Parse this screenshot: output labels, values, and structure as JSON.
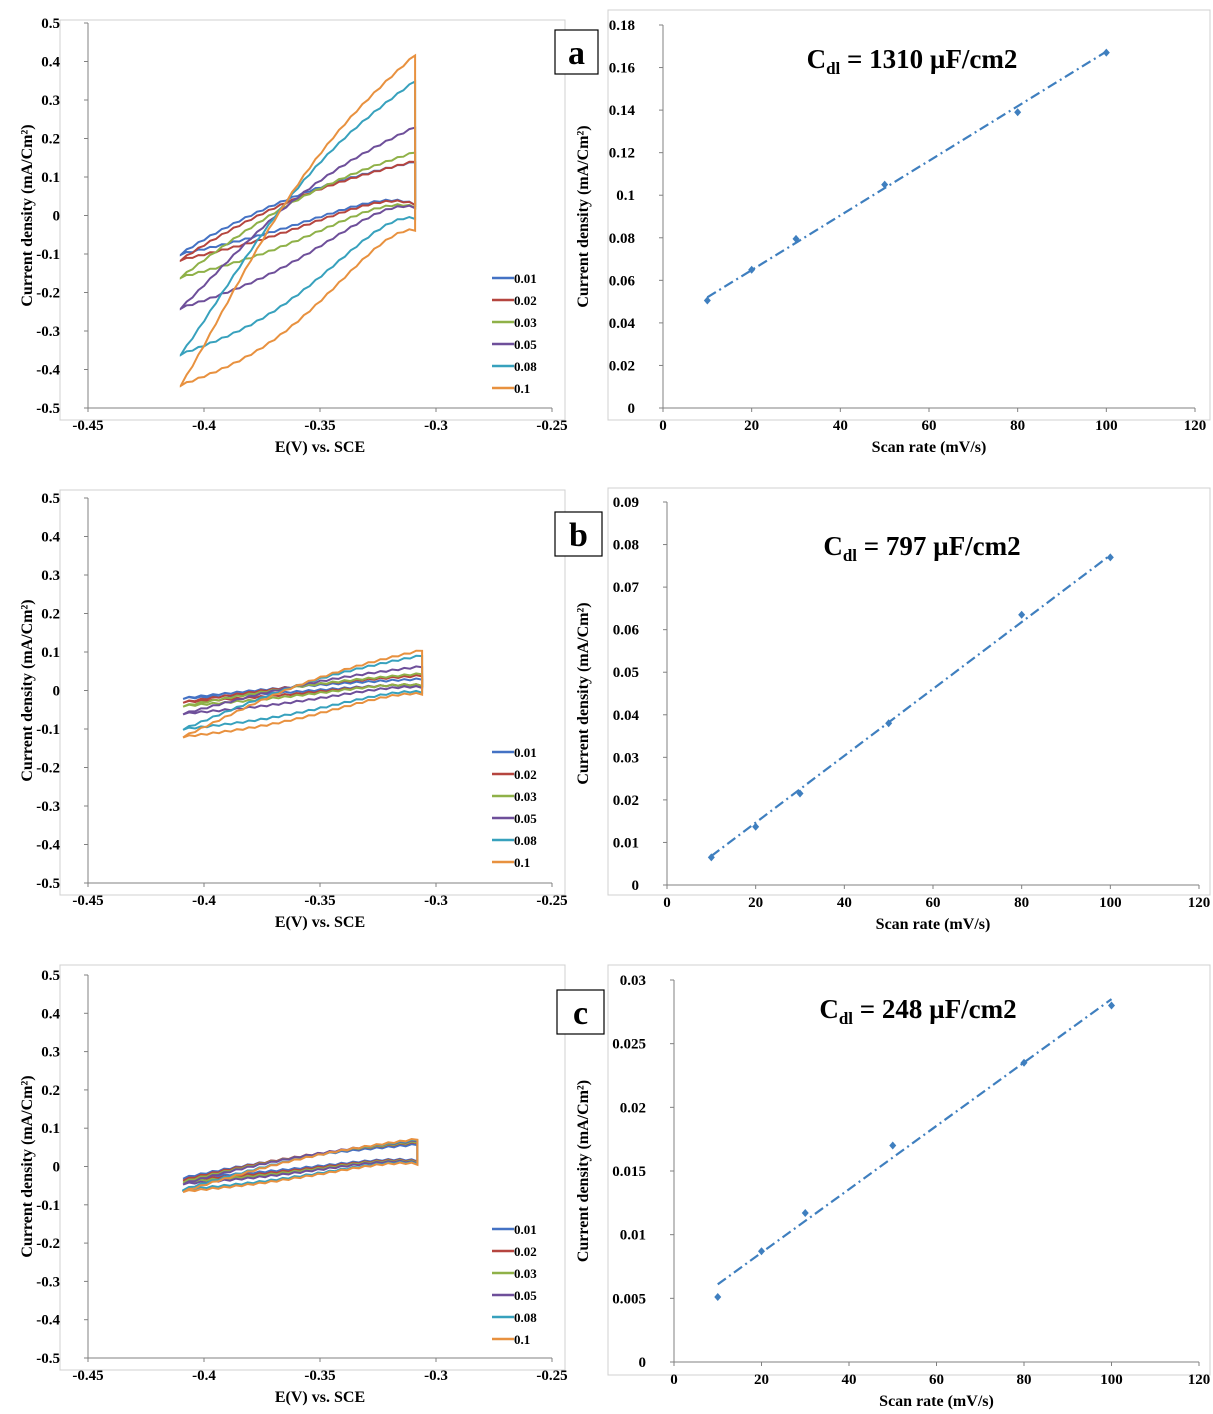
{
  "colors": {
    "0.01": "#4472c4",
    "0.02": "#b5453f",
    "0.03": "#8fb148",
    "0.05": "#6e4f9a",
    "0.08": "#37a1bd",
    "0.1": "#e8913f",
    "fit": "#3f7fbf",
    "axis": "#808080"
  },
  "chart_data": [
    {
      "panel": "a",
      "type": "line",
      "subtype": "cyclic-voltammogram",
      "title": "",
      "xlabel": "E(V)  vs. SCE",
      "ylabel": "Current density (mA/Cm²)",
      "xlim": [
        -0.45,
        -0.25
      ],
      "ylim": [
        -0.5,
        0.5
      ],
      "xticks": [
        "-0.45",
        "-0.4",
        "-0.35",
        "-0.3",
        "-0.25"
      ],
      "yticks": [
        "-0.5",
        "-0.4",
        "-0.3",
        "-0.2",
        "-0.1",
        "0",
        "0.1",
        "0.2",
        "0.3",
        "0.4",
        "0.5"
      ],
      "legend": "right",
      "series": [
        {
          "name": "0.01",
          "e_min": -0.41,
          "e_max": -0.309,
          "i_at_min": -0.1,
          "i_at_max": 0.12,
          "upper_end": 0.13,
          "lower_start": -0.14
        },
        {
          "name": "0.02",
          "e_min": -0.41,
          "e_max": -0.309,
          "i_at_min": -0.115,
          "i_at_max": 0.12,
          "upper_end": 0.135,
          "lower_start": -0.14
        },
        {
          "name": "0.03",
          "e_min": -0.41,
          "e_max": -0.309,
          "i_at_min": -0.16,
          "i_at_max": 0.12,
          "upper_end": 0.165,
          "lower_start": -0.16
        },
        {
          "name": "0.05",
          "e_min": -0.41,
          "e_max": -0.309,
          "i_at_min": -0.24,
          "i_at_max": 0.14,
          "upper_end": 0.24,
          "lower_start": -0.2
        },
        {
          "name": "0.08",
          "e_min": -0.41,
          "e_max": -0.309,
          "i_at_min": -0.36,
          "i_at_max": 0.14,
          "upper_end": 0.37,
          "lower_start": -0.28
        },
        {
          "name": "0.1",
          "e_min": -0.41,
          "e_max": -0.309,
          "i_at_min": -0.44,
          "i_at_max": 0.12,
          "upper_end": 0.445,
          "lower_start": -0.33
        }
      ]
    },
    {
      "panel": "a",
      "type": "scatter",
      "title": "",
      "annotation": {
        "main": "C",
        "sub": "dl",
        "rest": " = 1310 µF/cm2"
      },
      "xlabel": "Scan rate (mV/s)",
      "ylabel": "Current density (mA/Cm²)",
      "xlim": [
        0,
        120
      ],
      "ylim": [
        0,
        0.18
      ],
      "xticks": [
        "0",
        "20",
        "40",
        "60",
        "80",
        "100",
        "120"
      ],
      "yticks": [
        "0",
        "0.02",
        "0.04",
        "0.06",
        "0.08",
        "0.1",
        "0.12",
        "0.14",
        "0.16",
        "0.18"
      ],
      "x": [
        10,
        20,
        30,
        50,
        80,
        100
      ],
      "y": [
        0.0505,
        0.065,
        0.0795,
        0.105,
        0.139,
        0.167
      ],
      "fit": [
        [
          10,
          0.052
        ],
        [
          100,
          0.1675
        ]
      ]
    },
    {
      "panel": "b",
      "type": "line",
      "subtype": "cyclic-voltammogram",
      "title": "",
      "xlabel": "E(V)  vs. SCE",
      "ylabel": "Current density (mA/Cm²)",
      "xlim": [
        -0.45,
        -0.25
      ],
      "ylim": [
        -0.5,
        0.5
      ],
      "xticks": [
        "-0.45",
        "-0.4",
        "-0.35",
        "-0.3",
        "-0.25"
      ],
      "yticks": [
        "-0.5",
        "-0.4",
        "-0.3",
        "-0.2",
        "-0.1",
        "0",
        "0.1",
        "0.2",
        "0.3",
        "0.4",
        "0.5"
      ],
      "legend": "right",
      "series": [
        {
          "name": "0.01",
          "e_min": -0.409,
          "e_max": -0.306,
          "i_at_min": -0.02,
          "i_at_max": 0.03,
          "upper_end": 0.03,
          "lower_start": -0.02
        },
        {
          "name": "0.02",
          "e_min": -0.409,
          "e_max": -0.306,
          "i_at_min": -0.03,
          "i_at_max": 0.035,
          "upper_end": 0.04,
          "lower_start": -0.025
        },
        {
          "name": "0.03",
          "e_min": -0.409,
          "e_max": -0.306,
          "i_at_min": -0.04,
          "i_at_max": 0.04,
          "upper_end": 0.045,
          "lower_start": -0.035
        },
        {
          "name": "0.05",
          "e_min": -0.409,
          "e_max": -0.306,
          "i_at_min": -0.06,
          "i_at_max": 0.04,
          "upper_end": 0.065,
          "lower_start": -0.05
        },
        {
          "name": "0.08",
          "e_min": -0.409,
          "e_max": -0.306,
          "i_at_min": -0.1,
          "i_at_max": 0.04,
          "upper_end": 0.095,
          "lower_start": -0.085
        },
        {
          "name": "0.1",
          "e_min": -0.409,
          "e_max": -0.306,
          "i_at_min": -0.12,
          "i_at_max": 0.04,
          "upper_end": 0.11,
          "lower_start": -0.1
        }
      ]
    },
    {
      "panel": "b",
      "type": "scatter",
      "title": "",
      "annotation": {
        "main": "C",
        "sub": "dl",
        "rest": " = 797 µF/cm2"
      },
      "xlabel": "Scan rate (mV/s)",
      "ylabel": "Current density (mA/Cm²)",
      "xlim": [
        0,
        120
      ],
      "ylim": [
        0,
        0.09
      ],
      "xticks": [
        "0",
        "20",
        "40",
        "60",
        "80",
        "100",
        "120"
      ],
      "yticks": [
        "0",
        "0.01",
        "0.02",
        "0.03",
        "0.04",
        "0.05",
        "0.06",
        "0.07",
        "0.08",
        "0.09"
      ],
      "x": [
        10,
        20,
        30,
        50,
        80,
        100
      ],
      "y": [
        0.0065,
        0.0137,
        0.0215,
        0.038,
        0.0635,
        0.077
      ],
      "fit": [
        [
          10,
          0.0068
        ],
        [
          100,
          0.0775
        ]
      ]
    },
    {
      "panel": "c",
      "type": "line",
      "subtype": "cyclic-voltammogram",
      "title": "",
      "xlabel": "E(V)  vs. SCE",
      "ylabel": "Current density (mA/Cm²)",
      "xlim": [
        -0.45,
        -0.25
      ],
      "ylim": [
        -0.5,
        0.5
      ],
      "xticks": [
        "-0.45",
        "-0.4",
        "-0.35",
        "-0.3",
        "-0.25"
      ],
      "yticks": [
        "-0.5",
        "-0.4",
        "-0.3",
        "-0.2",
        "-0.1",
        "0",
        "0.1",
        "0.2",
        "0.3",
        "0.4",
        "0.5"
      ],
      "legend": "right",
      "series": [
        {
          "name": "0.01",
          "e_min": -0.409,
          "e_max": -0.308,
          "i_at_min": -0.03,
          "i_at_max": 0.045,
          "upper_end": 0.055,
          "lower_start": -0.04
        },
        {
          "name": "0.02",
          "e_min": -0.409,
          "e_max": -0.308,
          "i_at_min": -0.035,
          "i_at_max": 0.045,
          "upper_end": 0.06,
          "lower_start": -0.045
        },
        {
          "name": "0.03",
          "e_min": -0.409,
          "e_max": -0.308,
          "i_at_min": -0.04,
          "i_at_max": 0.045,
          "upper_end": 0.062,
          "lower_start": -0.05
        },
        {
          "name": "0.05",
          "e_min": -0.409,
          "e_max": -0.308,
          "i_at_min": -0.045,
          "i_at_max": 0.045,
          "upper_end": 0.065,
          "lower_start": -0.055
        },
        {
          "name": "0.08",
          "e_min": -0.409,
          "e_max": -0.308,
          "i_at_min": -0.06,
          "i_at_max": 0.045,
          "upper_end": 0.07,
          "lower_start": -0.06
        },
        {
          "name": "0.1",
          "e_min": -0.409,
          "e_max": -0.308,
          "i_at_min": -0.065,
          "i_at_max": 0.045,
          "upper_end": 0.072,
          "lower_start": -0.065
        }
      ]
    },
    {
      "panel": "c",
      "type": "scatter",
      "title": "",
      "annotation": {
        "main": "C",
        "sub": "dl",
        "rest": " = 248 µF/cm2"
      },
      "xlabel": "Scan rate (mV/s)",
      "ylabel": "Current density (mA/Cm²)",
      "xlim": [
        0,
        120
      ],
      "ylim": [
        0,
        0.03
      ],
      "xticks": [
        "0",
        "20",
        "40",
        "60",
        "80",
        "100",
        "120"
      ],
      "yticks": [
        "0",
        "0.005",
        "0.01",
        "0.015",
        "0.02",
        "0.025",
        "0.03"
      ],
      "x": [
        10,
        20,
        30,
        50,
        80,
        100
      ],
      "y": [
        0.0051,
        0.0087,
        0.0117,
        0.017,
        0.0235,
        0.028
      ],
      "fit": [
        [
          10,
          0.0061
        ],
        [
          100,
          0.0285
        ]
      ]
    }
  ]
}
